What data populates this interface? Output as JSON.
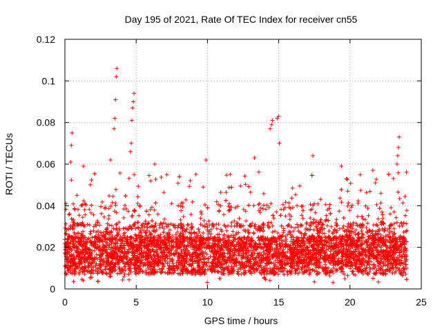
{
  "chart_data": {
    "type": "scatter",
    "title": "Day 195 of 2021, Rate Of TEC Index for receiver cn55",
    "xlabel": "GPS time / hours",
    "ylabel": "ROTI / TECUs",
    "xlim": [
      0,
      25
    ],
    "ylim": [
      0,
      0.12
    ],
    "x_ticks": [
      0,
      5,
      10,
      15,
      20,
      25
    ],
    "x_tick_labels": [
      "0",
      "5",
      "10",
      "15",
      "20",
      "25"
    ],
    "y_ticks": [
      0,
      0.02,
      0.04,
      0.06,
      0.08,
      0.1,
      0.12
    ],
    "y_tick_labels": [
      "0",
      "0.02",
      "0.04",
      "0.06",
      "0.08",
      "0.1",
      "0.12"
    ],
    "grid": true,
    "marker": "+",
    "color": "#ff0000",
    "series": [
      {
        "name": "ROTI",
        "bulk": {
          "x_range": [
            0,
            24
          ],
          "typical_range": [
            0.008,
            0.025
          ],
          "envelope_max": 0.06
        },
        "notable_points": [
          {
            "x": 0.4,
            "y": 0.061
          },
          {
            "x": 0.45,
            "y": 0.069
          },
          {
            "x": 0.5,
            "y": 0.075
          },
          {
            "x": 1.3,
            "y": 0.059
          },
          {
            "x": 3.2,
            "y": 0.062
          },
          {
            "x": 3.45,
            "y": 0.077
          },
          {
            "x": 3.5,
            "y": 0.082
          },
          {
            "x": 3.55,
            "y": 0.091
          },
          {
            "x": 3.6,
            "y": 0.102
          },
          {
            "x": 3.65,
            "y": 0.106
          },
          {
            "x": 4.6,
            "y": 0.066
          },
          {
            "x": 4.65,
            "y": 0.07
          },
          {
            "x": 4.7,
            "y": 0.081
          },
          {
            "x": 4.75,
            "y": 0.087
          },
          {
            "x": 4.8,
            "y": 0.09
          },
          {
            "x": 4.85,
            "y": 0.094
          },
          {
            "x": 6.3,
            "y": 0.06
          },
          {
            "x": 9.9,
            "y": 0.062
          },
          {
            "x": 13.3,
            "y": 0.063
          },
          {
            "x": 14.4,
            "y": 0.077
          },
          {
            "x": 14.5,
            "y": 0.079
          },
          {
            "x": 14.55,
            "y": 0.081
          },
          {
            "x": 14.9,
            "y": 0.082
          },
          {
            "x": 15.0,
            "y": 0.083
          },
          {
            "x": 15.05,
            "y": 0.07
          },
          {
            "x": 17.4,
            "y": 0.064
          },
          {
            "x": 19.4,
            "y": 0.059
          },
          {
            "x": 21.6,
            "y": 0.057
          },
          {
            "x": 23.3,
            "y": 0.06
          },
          {
            "x": 23.35,
            "y": 0.064
          },
          {
            "x": 23.4,
            "y": 0.068
          },
          {
            "x": 23.45,
            "y": 0.073
          }
        ]
      }
    ]
  }
}
